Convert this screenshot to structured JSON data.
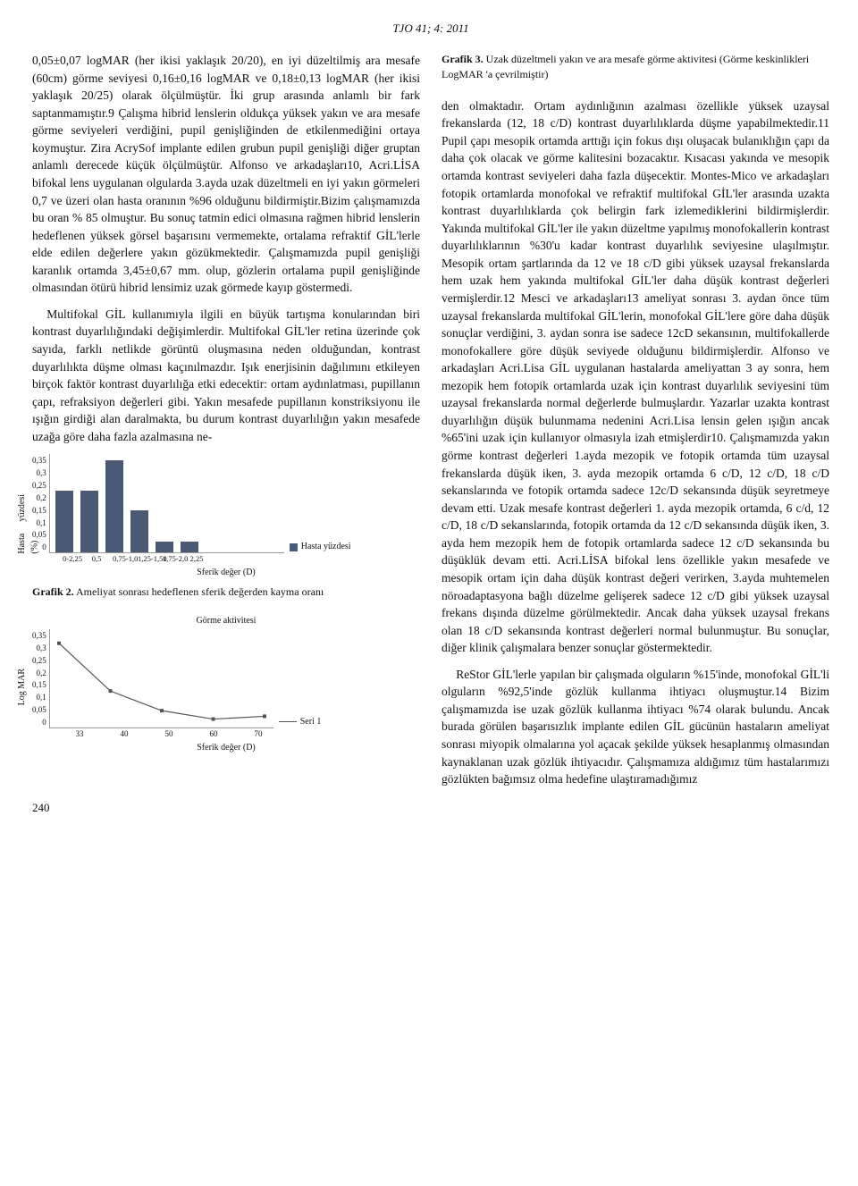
{
  "header": "TJO 41; 4: 2011",
  "page_number": "240",
  "col1": {
    "p1": "0,05±0,07 logMAR (her ikisi yaklaşık 20/20), en iyi düzeltilmiş ara mesafe (60cm) görme seviyesi 0,16±0,16 logMAR ve 0,18±0,13 logMAR (her ikisi yaklaşık 20/25) olarak ölçülmüştür. İki grup arasında anlamlı bir fark saptanmamıştır.9 Çalışma hibrid lenslerin oldukça yüksek yakın ve ara mesafe görme seviyeleri verdiğini, pupil genişliğinden de etkilenmediğini ortaya koymuştur. Zira AcrySof implante edilen grubun pupil genişliği diğer gruptan anlamlı derecede küçük ölçülmüştür. Alfonso ve arkadaşları10, Acri.LİSA bifokal lens uygulanan olgularda 3.ayda uzak düzeltmeli en iyi yakın görmeleri 0,7 ve üzeri olan hasta oranının %96 olduğunu bildirmiştir.Bizim çalışmamızda bu oran % 85 olmuştur. Bu sonuç tatmin edici olmasına rağmen hibrid lenslerin hedeflenen yüksek görsel başarısını vermemekte, ortalama refraktif GİL'lerle elde edilen değerlere yakın gözükmektedir. Çalışmamızda pupil genişliği karanlık ortamda 3,45±0,67 mm. olup, gözlerin ortalama pupil genişliğinde olmasından ötürü hibrid lensimiz uzak görmede kayıp göstermedi.",
    "p2": "Multifokal GİL kullanımıyla ilgili en büyük tartışma konularından biri kontrast duyarlılığındaki değişimlerdir. Multifokal GİL'ler retina üzerinde çok sayıda, farklı netlikde görüntü oluşmasına neden olduğundan, kontrast duyarlılıkta düşme olması kaçınılmazdır. Işık enerjisinin dağılımını etkileyen birçok faktör kontrast duyarlılığa etki edecektir: ortam aydınlatması, pupillanın çapı, refraksiyon değerleri gibi. Yakın mesafede pupillanın konstriksiyonu ile ışığın girdiği alan daralmakta, bu durum kontrast duyarlılığın yakın mesafede uzağa göre daha fazla azalmasına ne-"
  },
  "col2": {
    "p1": "den olmaktadır. Ortam aydınlığının azalması özellikle yüksek uzaysal frekanslarda (12, 18 c/D) kontrast duyarlılıklarda düşme yapabilmektedir.11 Pupil çapı mesopik ortamda arttığı için fokus dışı oluşacak bulanıklığın çapı da daha çok olacak ve görme kalitesini bozacaktır. Kısacası yakında ve mesopik ortamda kontrast seviyeleri daha fazla düşecektir. Montes-Mico ve arkadaşları fotopik ortamlarda monofokal ve refraktif multifokal GİL'ler arasında uzakta kontrast duyarlılıklarda çok belirgin fark izlemediklerini bildirmişlerdir. Yakında multifokal GİL'ler ile yakın düzeltme yapılmış monofokallerin kontrast duyarlılıklarının %30'u kadar kontrast duyarlılık seviyesine ulaşılmıştır. Mesopik ortam şartlarında da 12 ve 18 c/D gibi yüksek uzaysal frekanslarda hem uzak hem yakında multifokal GİL'ler daha düşük kontrast değerleri vermişlerdir.12 Mesci ve arkadaşları13 ameliyat sonrası 3. aydan önce tüm uzaysal frekanslarda multifokal GİL'lerin, monofokal GİL'lere göre daha düşük sonuçlar verdiğini, 3. aydan sonra ise sadece 12cD sekansının, multifokallerde monofokallere göre düşük seviyede olduğunu bildirmişlerdir. Alfonso ve arkadaşları Acri.Lisa GİL uygulanan hastalarda ameliyattan 3 ay sonra, hem mezopik hem fotopik ortamlarda uzak için kontrast duyarlılık seviyesini tüm uzaysal frekanslarda normal değerlerde bulmuşlardır. Yazarlar uzakta kontrast duyarlılığın düşük bulunmama nedenini Acri.Lisa lensin gelen ışığın ancak %65'ini uzak için kullanıyor olmasıyla izah etmişlerdir10. Çalışmamızda yakın görme kontrast değerleri 1.ayda mezopik ve fotopik ortamda tüm uzaysal frekanslarda düşük iken, 3. ayda mezopik ortamda 6 c/D, 12 c/D, 18 c/D sekanslarında ve fotopik ortamda sadece 12c/D sekansında düşük seyretmeye devam etti. Uzak mesafe kontrast değerleri 1. ayda mezopik ortamda, 6 c/d, 12 c/D, 18 c/D sekanslarında, fotopik ortamda da 12 c/D sekansında düşük iken, 3. ayda hem mezopik hem de fotopik ortamlarda sadece 12 c/D sekansında bu düşüklük devam etti. Acri.LİSA bifokal lens özellikle yakın mesafede ve mesopik ortam için daha düşük kontrast değeri verirken, 3.ayda muhtemelen nöroadaptasyona bağlı düzelme gelişerek sadece 12 c/D gibi yüksek uzaysal frekans dışında düzelme görülmektedir. Ancak daha yüksek uzaysal frekans olan 18 c/D sekansında kontrast değerleri normal bulunmuştur. Bu sonuçlar, diğer klinik çalışmalara benzer sonuçlar göstermektedir.",
    "p2": "ReStor GİL'lerle yapılan bir çalışmada olguların %15'inde, monofokal GİL'li olguların %92,5'inde gözlük kullanma ihtiyacı oluşmuştur.14 Bizim çalışmamızda ise uzak gözlük kullanma ihtiyacı %74 olarak bulundu. Ancak burada görülen başarısızlık implante edilen GİL gücünün hastaların ameliyat sonrası miyopik olmalarına yol açacak şekilde yüksek hesaplanmış olmasından kaynaklanan uzak gözlük ihtiyacıdır. Çalışmamıza aldığımız tüm hastalarımızı gözlükten bağımsız olma hedefine ulaştıramadığımız"
  },
  "grafik2": {
    "type": "bar",
    "y_label": "Hasta yüzdesi (%)",
    "x_label": "Sferik değer (D)",
    "legend": "Hasta yüzdesi",
    "y_ticks": [
      "0,35",
      "0,3",
      "0,25",
      "0,2",
      "0,15",
      "0,1",
      "0,05",
      "0"
    ],
    "y_max": 0.35,
    "categories": [
      "0-2,25",
      "0,5",
      "0,75-1,0",
      "1,25-1,50",
      "1,75-2,0",
      "2,25"
    ],
    "values": [
      0.22,
      0.22,
      0.33,
      0.15,
      0.04,
      0.04
    ],
    "bar_color": "#4a5a75",
    "caption_bold": "Grafik 2.",
    "caption_text": " Ameliyat sonrası hedeflenen sferik değerden kayma oranı"
  },
  "grafik3": {
    "type": "line",
    "title": "Görme aktivitesi",
    "y_label": "Log MAR",
    "x_label": "Sferik değer (D)",
    "legend": "Seri 1",
    "y_ticks": [
      "0,35",
      "0,3",
      "0,25",
      "0,2",
      "0,15",
      "0,1",
      "0,05",
      "0"
    ],
    "y_max": 0.35,
    "x_values": [
      "33",
      "40",
      "50",
      "60",
      "70"
    ],
    "series": [
      0.3,
      0.13,
      0.06,
      0.03,
      0.04
    ],
    "line_color": "#555555",
    "caption_bold": "Grafik 3.",
    "caption_text": " Uzak düzeltmeli yakın ve ara mesafe görme aktivitesi (Görme keskinlikleri LogMAR 'a çevrilmiştir)"
  }
}
